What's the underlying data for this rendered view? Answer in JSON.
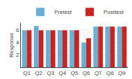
{
  "chart_data": {
    "type": "bar",
    "categories": [
      "Q1",
      "Q2",
      "Q3",
      "Q4",
      "Q5",
      "Q6",
      "Q7",
      "Q8",
      "Q9"
    ],
    "series": [
      {
        "name": "Pretest",
        "color": "#6aafd6",
        "values": [
          6.0,
          6.7,
          6.0,
          6.0,
          6.0,
          4.0,
          6.6,
          6.6,
          6.6
        ]
      },
      {
        "name": "Posttest",
        "color": "#cc2222",
        "values": [
          6.0,
          6.0,
          6.0,
          6.0,
          6.0,
          4.7,
          6.6,
          6.6,
          6.6
        ]
      }
    ],
    "ylabel": "Response",
    "ylim": [
      0,
      7.2
    ],
    "yticks": [
      2,
      4,
      6
    ],
    "grid": true,
    "legend": "upper right"
  }
}
